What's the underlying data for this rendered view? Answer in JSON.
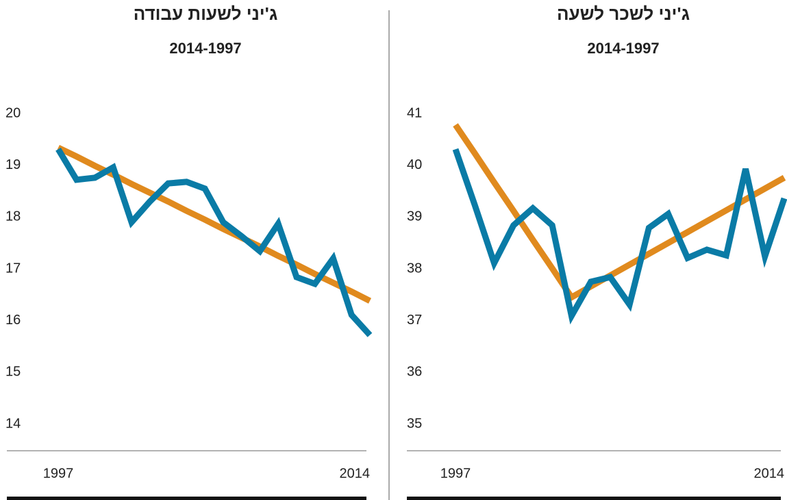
{
  "chart_data": [
    {
      "type": "line",
      "title": "ג'יני לשעות עבודה",
      "subtitle": "2014-1997",
      "categories": [
        "1997",
        null,
        null,
        null,
        null,
        null,
        null,
        null,
        null,
        null,
        null,
        null,
        null,
        null,
        null,
        null,
        null,
        "2014"
      ],
      "series": [
        {
          "color": "#e08a1e",
          "values": [
            19.34,
            19.17,
            18.99,
            18.82,
            18.64,
            18.47,
            18.3,
            18.12,
            17.95,
            17.77,
            17.6,
            17.43,
            17.25,
            17.08,
            16.9,
            16.73,
            16.56,
            16.38
          ]
        },
        {
          "color": "#0a7ba6",
          "values": [
            19.31,
            18.72,
            18.76,
            18.96,
            17.9,
            18.3,
            18.65,
            18.68,
            18.55,
            17.9,
            17.63,
            17.34,
            17.87,
            16.84,
            16.71,
            17.2,
            16.11,
            15.72
          ]
        }
      ],
      "ylim": [
        14,
        20
      ],
      "yticks": [
        14,
        15,
        16,
        17,
        18,
        19,
        20
      ]
    },
    {
      "type": "line",
      "title": "ג'יני לשכר לשעה",
      "subtitle": "2014-1997",
      "categories": [
        "1997",
        null,
        null,
        null,
        null,
        null,
        null,
        null,
        null,
        null,
        null,
        null,
        null,
        null,
        null,
        null,
        null,
        "2014"
      ],
      "series": [
        {
          "color": "#e08a1e",
          "values": [
            40.78,
            40.23,
            39.67,
            39.12,
            38.56,
            38.01,
            37.45,
            37.66,
            37.87,
            38.08,
            38.29,
            38.5,
            38.71,
            38.92,
            39.13,
            39.34,
            39.55,
            39.76
          ]
        },
        {
          "color": "#0a7ba6",
          "values": [
            40.31,
            39.23,
            38.11,
            38.84,
            39.17,
            38.84,
            37.09,
            37.75,
            37.84,
            37.31,
            38.79,
            39.06,
            38.21,
            38.37,
            38.26,
            39.93,
            38.24,
            39.36
          ]
        }
      ],
      "ylim": [
        35,
        41
      ],
      "yticks": [
        35,
        36,
        37,
        38,
        39,
        40,
        41
      ]
    }
  ]
}
